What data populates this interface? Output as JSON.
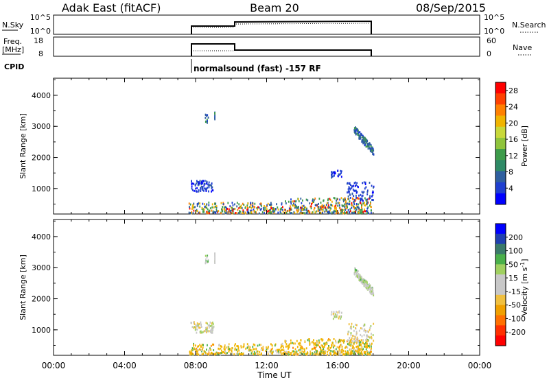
{
  "header": {
    "site": "Adak East (fitACF)",
    "beam": "Beam 20",
    "date": "08/Sep/2015"
  },
  "panels": {
    "nsky": {
      "left_label": "N.Sky",
      "right_label": "N.Search",
      "left_ticks": [
        "10^5",
        "10^0"
      ],
      "right_ticks": [
        "10^5",
        "10^0"
      ]
    },
    "freq": {
      "left_label": "Freq.",
      "left_unit": "[MHz]",
      "right_label": "Nave",
      "left_ticks": [
        "18",
        "8"
      ],
      "right_ticks": [
        "60",
        "0"
      ]
    },
    "cpid": {
      "label": "CPID",
      "program": "normalsound (fast) -157 RF"
    }
  },
  "chart_data": [
    {
      "type": "scatter",
      "title": "",
      "xlabel": "Time UT",
      "ylabel": "Slant Range [km]",
      "xlim": [
        0,
        24
      ],
      "ylim": [
        180,
        4550
      ],
      "x_ticks": [
        "00:00",
        "04:00",
        "08:00",
        "12:00",
        "16:00",
        "20:00",
        "00:00"
      ],
      "y_ticks": [
        "1000",
        "2000",
        "3000",
        "4000"
      ],
      "colorbar": {
        "label": "Power [dB]",
        "ticks": [
          "4",
          "8",
          "12",
          "16",
          "20",
          "24",
          "28"
        ],
        "range": [
          0,
          30
        ],
        "colors": [
          "#0000ff",
          "#1f3fd0",
          "#2f5f9f",
          "#2e8a66",
          "#3d9b4a",
          "#8fc43c",
          "#c8d83a",
          "#f0b400",
          "#ff8000",
          "#ff4000",
          "#ff0000"
        ]
      }
    },
    {
      "type": "scatter",
      "title": "",
      "xlabel": "Time UT",
      "ylabel": "Slant Range [km]",
      "xlim": [
        0,
        24
      ],
      "ylim": [
        180,
        4550
      ],
      "x_ticks": [
        "00:00",
        "04:00",
        "08:00",
        "12:00",
        "16:00",
        "20:00",
        "00:00"
      ],
      "y_ticks": [
        "1000",
        "2000",
        "3000",
        "4000"
      ],
      "colorbar": {
        "label": "Velocity [m s^-1]",
        "ticks": [
          "200",
          "100",
          "50",
          "15",
          "-15",
          "-50",
          "-100",
          "-200"
        ],
        "range": [
          -250,
          250
        ],
        "colors": [
          "#0000ff",
          "#2040b0",
          "#3a7a6a",
          "#4ab04a",
          "#a0d060",
          "#c8c8c8",
          "#c8c8c8",
          "#f0c040",
          "#f0a000",
          "#ff7000",
          "#ff3000",
          "#ff0000"
        ]
      }
    }
  ],
  "xaxis": {
    "label": "Time UT"
  }
}
